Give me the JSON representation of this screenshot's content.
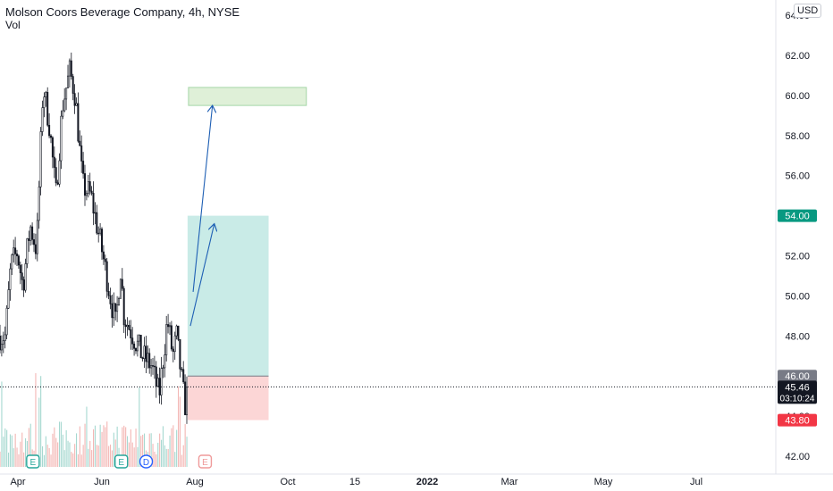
{
  "header": {
    "title": "Molson Coors Beverage Company, 4h, NYSE",
    "volume_label": "Vol",
    "currency": "USD"
  },
  "chart_data": {
    "type": "candlestick",
    "y_axis": {
      "ticks": [
        42.0,
        44.0,
        46.0,
        48.0,
        50.0,
        52.0,
        54.0,
        56.0,
        58.0,
        60.0,
        62.0,
        64.0
      ],
      "tick_labels": [
        "42.00",
        "44.00",
        "46.00",
        "48.00",
        "50.00",
        "52.00",
        "54.00",
        "56.00",
        "58.00",
        "60.00",
        "62.00",
        "64.00"
      ],
      "range": [
        41.6,
        64.6
      ]
    },
    "x_axis": {
      "tick_labels": [
        "Apr",
        "Jun",
        "Aug",
        "Oct",
        "15",
        "2022",
        "Mar",
        "May",
        "Jul"
      ],
      "bold_labels": [
        "2022"
      ]
    },
    "price_path": [
      {
        "date": "2021-03-30",
        "price": 48.0
      },
      {
        "date": "2021-04-05",
        "price": 51.5
      },
      {
        "date": "2021-04-12",
        "price": 52.2
      },
      {
        "date": "2021-04-18",
        "price": 50.5
      },
      {
        "date": "2021-04-26",
        "price": 53.5
      },
      {
        "date": "2021-05-03",
        "price": 52.3
      },
      {
        "date": "2021-05-10",
        "price": 60.5
      },
      {
        "date": "2021-05-17",
        "price": 58.5
      },
      {
        "date": "2021-05-24",
        "price": 55.0
      },
      {
        "date": "2021-05-31",
        "price": 59.5
      },
      {
        "date": "2021-06-08",
        "price": 61.2
      },
      {
        "date": "2021-06-14",
        "price": 60.0
      },
      {
        "date": "2021-06-22",
        "price": 55.5
      },
      {
        "date": "2021-07-01",
        "price": 55.0
      },
      {
        "date": "2021-07-12",
        "price": 52.5
      },
      {
        "date": "2021-07-20",
        "price": 50.5
      },
      {
        "date": "2021-07-28",
        "price": 48.5
      },
      {
        "date": "2021-08-02",
        "price": 51.5
      },
      {
        "date": "2021-08-06",
        "price": 49.0
      },
      {
        "date": "2021-08-16",
        "price": 48.0
      },
      {
        "date": "2021-08-26",
        "price": 47.0
      },
      {
        "date": "2021-09-05",
        "price": 46.5
      },
      {
        "date": "2021-09-13",
        "price": 45.0
      },
      {
        "date": "2021-09-22",
        "price": 48.8
      },
      {
        "date": "2021-09-28",
        "price": 47.0
      },
      {
        "date": "2021-10-02",
        "price": 48.0
      },
      {
        "date": "2021-10-07",
        "price": 46.0
      },
      {
        "date": "2021-10-11",
        "price": 44.5
      },
      {
        "date": "2021-10-14",
        "price": 45.46
      }
    ],
    "current_price": {
      "value": 45.46,
      "label": "45.46",
      "countdown": "03:10:24"
    },
    "long_position": {
      "entry": 46.0,
      "entry_label": "46.00",
      "target": 54.0,
      "target_label": "54.00",
      "stop": 43.8,
      "stop_label": "43.80",
      "start_date": "2021-10-14",
      "end_date": "2022-01-10"
    },
    "target_zone": {
      "price_low": 59.5,
      "price_high": 60.4,
      "start_date": "2021-10-15",
      "end_date": "2022-02-20"
    },
    "arrows": [
      {
        "from_date": "2021-10-17",
        "from_price": 48.5,
        "to_date": "2021-11-12",
        "to_price": 53.6
      },
      {
        "from_date": "2021-10-20",
        "from_price": 50.2,
        "to_date": "2021-11-10",
        "to_price": 59.5
      }
    ],
    "event_markers": [
      {
        "letter": "E",
        "date": "2021-04-29",
        "kind": "earnings"
      },
      {
        "letter": "E",
        "date": "2021-08-03",
        "kind": "earnings"
      },
      {
        "letter": "D",
        "date": "2021-08-30",
        "kind": "dividend"
      },
      {
        "letter": "E",
        "date": "2021-11-02",
        "kind": "earnings-upcoming"
      }
    ],
    "colors": {
      "candle": "#131722",
      "vol_up": "#a6d8d0",
      "vol_down": "#f3b6b4",
      "profit_zone": "#b7e4df",
      "loss_zone": "#fbcfcf",
      "target_zone": "#dff0d8",
      "target_zone_border": "#a5d6a7",
      "arrow": "#1e5fb4",
      "target_badge": "#089981",
      "stop_badge": "#f23645",
      "entry_badge": "#787b86",
      "price_badge": "#131722",
      "earnings_marker": "#26a69a",
      "dividend_marker": "#2962ff",
      "upcoming_earnings_marker": "#ef9a9a"
    }
  }
}
